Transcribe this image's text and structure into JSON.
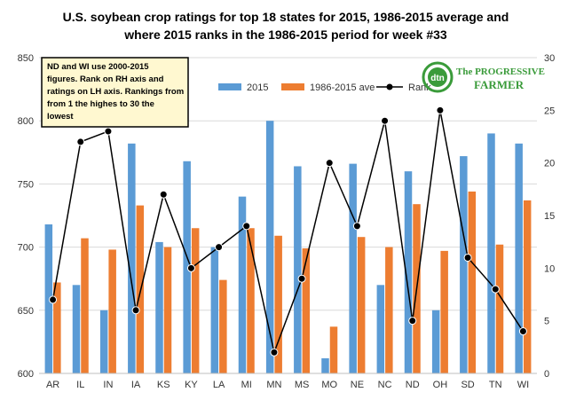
{
  "chart_data": {
    "type": "bar",
    "title_lines": [
      "U.S. soybean crop ratings for top 18 states for 2015, 1986-2015 average and",
      "where 2015 ranks in the 1986-2015 period for week #33"
    ],
    "categories": [
      "AR",
      "IL",
      "IN",
      "IA",
      "KS",
      "KY",
      "LA",
      "MI",
      "MN",
      "MS",
      "MO",
      "NE",
      "NC",
      "ND",
      "OH",
      "SD",
      "TN",
      "WI"
    ],
    "series": [
      {
        "name": "2015",
        "type": "bar",
        "axis": "left",
        "color": "#5b9bd5",
        "values": [
          718,
          670,
          650,
          782,
          704,
          768,
          700,
          740,
          800,
          764,
          612,
          766,
          670,
          760,
          650,
          772,
          790,
          782
        ]
      },
      {
        "name": "1986-2015 ave",
        "type": "bar",
        "axis": "left",
        "color": "#ed7d31",
        "values": [
          672,
          707,
          698,
          733,
          700,
          715,
          674,
          715,
          709,
          699,
          637,
          708,
          700,
          734,
          697,
          744,
          702,
          737
        ]
      },
      {
        "name": "Rank",
        "type": "line",
        "axis": "right",
        "color": "#000000",
        "values": [
          7,
          22,
          23,
          6,
          17,
          10,
          12,
          14,
          2,
          9,
          20,
          14,
          24,
          5,
          25,
          11,
          8,
          4
        ]
      }
    ],
    "y_left": {
      "min": 600,
      "max": 850,
      "ticks": [
        600,
        650,
        700,
        750,
        800,
        850
      ]
    },
    "y_right": {
      "min": 0,
      "max": 30,
      "ticks": [
        0,
        5,
        10,
        15,
        20,
        25,
        30
      ]
    },
    "grid": true,
    "legend_position": "top",
    "annotation_lines": [
      "ND and WI use 2000-2015",
      "figures. Rank on RH axis and",
      "ratings on LH axis. Rankings from",
      "from 1 the highes to 30 the",
      "lowest"
    ],
    "logo": {
      "line1": "dtn",
      "line2": "The PROGRESSIVE",
      "line3": "FARMER"
    }
  }
}
